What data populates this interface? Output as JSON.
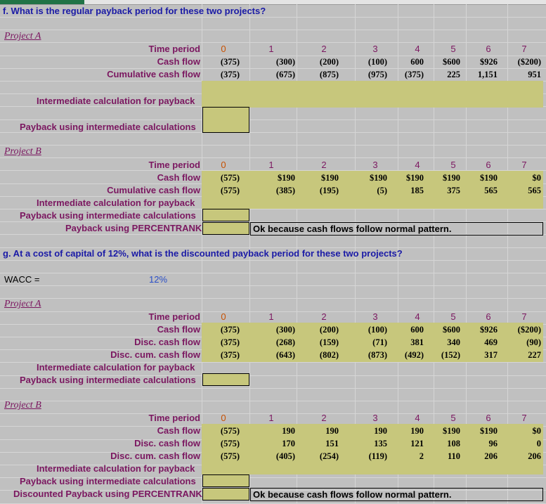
{
  "question_f": "f.  What is the regular payback period for these two projects?",
  "question_g": "g.   At a cost of capital of 12%, what is the discounted payback period for these two projects?",
  "project_a_title": "Project A",
  "project_b_title": "Project B",
  "labels": {
    "time_period": "Time period",
    "cash_flow": "Cash flow",
    "cumulative_cash_flow": "Cumulative cash flow",
    "disc_cash_flow": "Disc. cash flow",
    "disc_cum_cash_flow": "Disc. cum. cash flow",
    "intermediate_calc": "Intermediate calculation for payback",
    "payback_intermediate": "Payback using intermediate calculations",
    "payback_percentrank": "Payback using PERCENTRANK",
    "disc_payback_percentrank": "Discounted Payback using PERCENTRANK"
  },
  "note": "Ok because cash flows follow normal pattern.",
  "wacc_label": "WACC   =",
  "wacc_value": "12%",
  "f_a": {
    "periods": [
      "0",
      "1",
      "2",
      "3",
      "4",
      "5",
      "6",
      "7"
    ],
    "cash_flow": [
      "(375)",
      "(300)",
      "(200)",
      "(100)",
      "600",
      "$600",
      "$926",
      "($200)"
    ],
    "cumulative": [
      "(375)",
      "(675)",
      "(875)",
      "(975)",
      "(375)",
      "225",
      "1,151",
      "951"
    ]
  },
  "f_b": {
    "periods": [
      "0",
      "1",
      "2",
      "3",
      "4",
      "5",
      "6",
      "7"
    ],
    "cash_flow": [
      "(575)",
      "$190",
      "$190",
      "$190",
      "$190",
      "$190",
      "$190",
      "$0"
    ],
    "cumulative": [
      "(575)",
      "(385)",
      "(195)",
      "(5)",
      "185",
      "375",
      "565",
      "565"
    ]
  },
  "g_a": {
    "periods": [
      "0",
      "1",
      "2",
      "3",
      "4",
      "5",
      "6",
      "7"
    ],
    "cash_flow": [
      "(375)",
      "(300)",
      "(200)",
      "(100)",
      "600",
      "$600",
      "$926",
      "($200)"
    ],
    "disc_cash_flow": [
      "(375)",
      "(268)",
      "(159)",
      "(71)",
      "381",
      "340",
      "469",
      "(90)"
    ],
    "disc_cum": [
      "(375)",
      "(643)",
      "(802)",
      "(873)",
      "(492)",
      "(152)",
      "317",
      "227"
    ]
  },
  "g_b": {
    "periods": [
      "0",
      "1",
      "2",
      "3",
      "4",
      "5",
      "6",
      "7"
    ],
    "cash_flow": [
      "(575)",
      "190",
      "190",
      "190",
      "190",
      "$190",
      "$190",
      "$0"
    ],
    "disc_cash_flow": [
      "(575)",
      "170",
      "151",
      "135",
      "121",
      "108",
      "96",
      "0"
    ],
    "disc_cum": [
      "(575)",
      "(405)",
      "(254)",
      "(119)",
      "2",
      "110",
      "206",
      "206"
    ]
  }
}
